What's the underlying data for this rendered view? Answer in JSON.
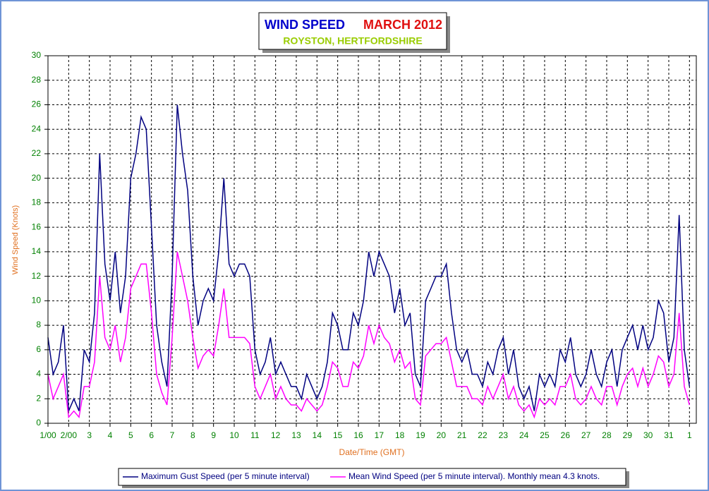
{
  "chart_data": {
    "type": "line",
    "title": "WIND SPEED",
    "title_period": "MARCH 2012",
    "subtitle": "ROYSTON, HERTFORDSHIRE",
    "x_label": "Date/Time (GMT)",
    "y_label": "Wind Speed (Knots)",
    "x": [
      1,
      1.25,
      1.5,
      1.75,
      2,
      2.25,
      2.5,
      2.75,
      3,
      3.25,
      3.5,
      3.75,
      4,
      4.25,
      4.5,
      4.75,
      5,
      5.25,
      5.5,
      5.75,
      6,
      6.25,
      6.5,
      6.75,
      7,
      7.25,
      7.5,
      7.75,
      8,
      8.25,
      8.5,
      8.75,
      9,
      9.25,
      9.5,
      9.75,
      10,
      10.25,
      10.5,
      10.75,
      11,
      11.25,
      11.5,
      11.75,
      12,
      12.25,
      12.5,
      12.75,
      13,
      13.25,
      13.5,
      13.75,
      14,
      14.25,
      14.5,
      14.75,
      15,
      15.25,
      15.5,
      15.75,
      16,
      16.25,
      16.5,
      16.75,
      17,
      17.25,
      17.5,
      17.75,
      18,
      18.25,
      18.5,
      18.75,
      19,
      19.25,
      19.5,
      19.75,
      20,
      20.25,
      20.5,
      20.75,
      21,
      21.25,
      21.5,
      21.75,
      22,
      22.25,
      22.5,
      22.75,
      23,
      23.25,
      23.5,
      23.75,
      24,
      24.25,
      24.5,
      24.75,
      25,
      25.25,
      25.5,
      25.75,
      26,
      26.25,
      26.5,
      26.75,
      27,
      27.25,
      27.5,
      27.75,
      28,
      28.25,
      28.5,
      28.75,
      29,
      29.25,
      29.5,
      29.75,
      30,
      30.25,
      30.5,
      30.75,
      31,
      31.25,
      31.5,
      31.75,
      32
    ],
    "series": [
      {
        "name": "Maximum Gust Speed (per 5 minute interval)",
        "color": "#000080",
        "values": [
          7,
          4,
          5,
          8,
          1,
          2,
          1,
          6,
          5,
          9,
          22,
          13,
          10,
          14,
          9,
          12,
          20,
          22,
          25,
          24,
          16,
          8,
          5,
          3,
          12,
          26,
          22,
          19,
          12,
          8,
          10,
          11,
          10,
          14,
          20,
          13,
          12,
          13,
          13,
          12,
          6,
          4,
          5,
          7,
          4,
          5,
          4,
          3,
          3,
          2,
          4,
          3,
          2,
          3,
          5,
          9,
          8,
          6,
          6,
          9,
          8,
          10,
          14,
          12,
          14,
          13,
          12,
          9,
          11,
          8,
          9,
          4,
          3,
          10,
          11,
          12,
          12,
          13,
          9,
          6,
          5,
          6,
          4,
          4,
          3,
          5,
          4,
          6,
          7,
          4,
          6,
          3,
          2,
          3,
          1,
          4,
          3,
          4,
          3,
          6,
          5,
          7,
          4,
          3,
          4,
          6,
          4,
          3,
          5,
          6,
          3,
          6,
          7,
          8,
          6,
          8,
          6,
          7,
          10,
          9,
          5,
          7,
          17,
          6,
          3
        ]
      },
      {
        "name": "Mean Wind Speed (per 5 minute interval). Monthly mean 4.3 knots.",
        "color": "#ff00ff",
        "values": [
          4,
          2,
          3,
          4,
          0.5,
          1,
          0.5,
          3,
          3,
          5,
          12,
          7,
          6,
          8,
          5,
          7,
          11,
          12,
          13,
          13,
          9,
          4,
          2.5,
          1.5,
          7,
          14,
          12,
          10,
          7,
          4.5,
          5.5,
          6,
          5.5,
          8,
          11,
          7,
          7,
          7,
          7,
          6.5,
          3,
          2,
          3,
          4,
          2,
          3,
          2,
          1.5,
          1.5,
          1,
          2,
          1.5,
          1,
          1.5,
          3,
          5,
          4.5,
          3,
          3,
          5,
          4.5,
          5.5,
          8,
          6.5,
          8,
          7,
          6.5,
          5,
          6,
          4.5,
          5,
          2,
          1.5,
          5.5,
          6,
          6.5,
          6.5,
          7,
          5,
          3,
          3,
          3,
          2,
          2,
          1.5,
          3,
          2,
          3,
          4,
          2,
          3,
          1.5,
          1,
          1.5,
          0.5,
          2,
          1.5,
          2,
          1.5,
          3,
          3,
          4,
          2,
          1.5,
          2,
          3,
          2,
          1.5,
          3,
          3,
          1.5,
          3,
          4,
          4.5,
          3,
          4.5,
          3,
          4,
          5.5,
          5,
          3,
          4,
          9,
          3,
          1.5
        ]
      }
    ],
    "xlim": [
      1,
      32.33
    ],
    "xticks": [
      {
        "value": 1,
        "label": "1/00"
      },
      {
        "value": 2,
        "label": "2/00"
      },
      3,
      4,
      5,
      6,
      7,
      8,
      9,
      10,
      11,
      12,
      13,
      14,
      15,
      16,
      17,
      18,
      19,
      20,
      21,
      22,
      23,
      24,
      25,
      26,
      27,
      28,
      29,
      30,
      31,
      {
        "value": 32,
        "label": "1"
      }
    ],
    "ylim": [
      0,
      30
    ],
    "yticks": [
      0,
      2,
      4,
      6,
      8,
      10,
      12,
      14,
      16,
      18,
      20,
      22,
      24,
      26,
      28,
      30
    ],
    "grid": true
  }
}
